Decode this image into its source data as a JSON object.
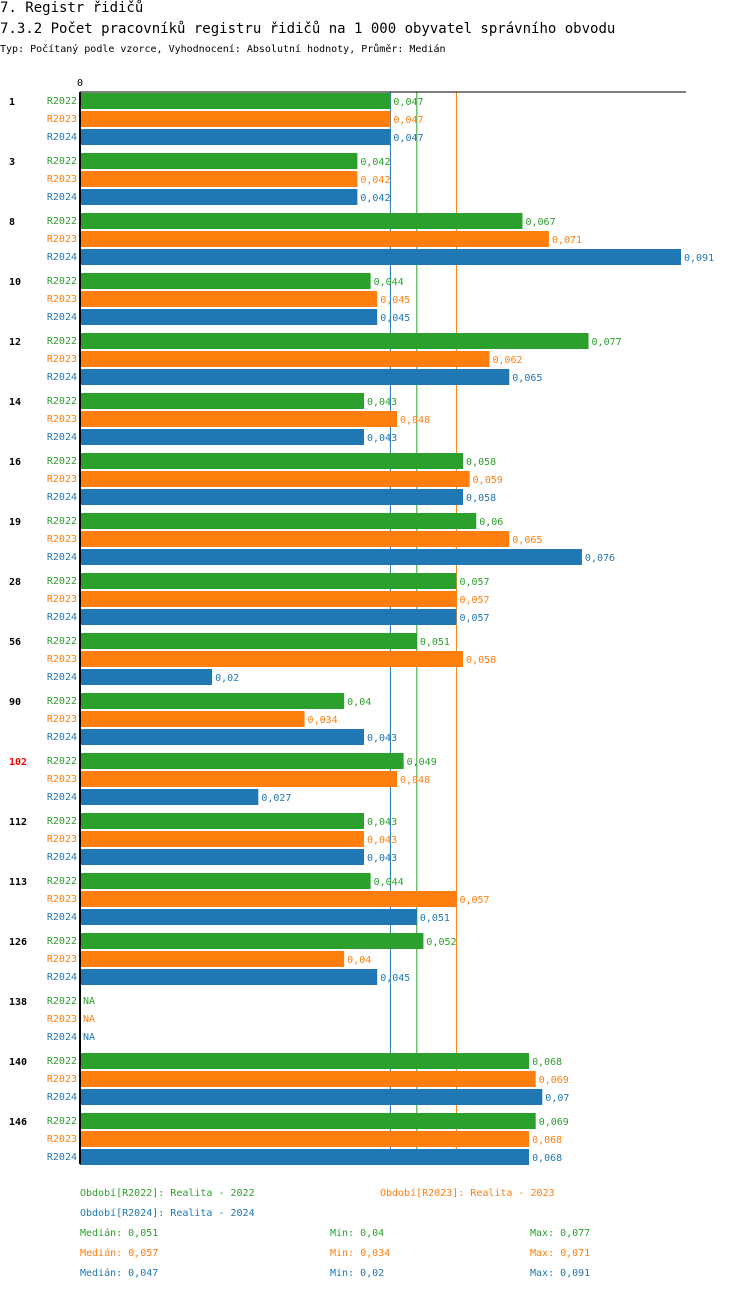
{
  "header": {
    "title": "7. Registr řidičů",
    "subtitle": "7.3.2 Počet pracovníků registru řidičů na 1 000 obyvatel správního obvodu",
    "type_line": "Typ: Počítaný podle vzorce, Vyhodnocení: Absolutní hodnoty, Průměr: Medián"
  },
  "chart_data": {
    "type": "bar",
    "orientation": "horizontal",
    "axis_zero_label": "0",
    "xlim": [
      0,
      0.091
    ],
    "colors": {
      "R2022": "#2ca02c",
      "R2023": "#ff7f0e",
      "R2024": "#1f77b4",
      "highlight": "#ff0000"
    },
    "series_names": [
      "R2022",
      "R2023",
      "R2024"
    ],
    "groups": [
      {
        "label": "1",
        "values": [
          0.047,
          0.047,
          0.047
        ]
      },
      {
        "label": "3",
        "values": [
          0.042,
          0.042,
          0.042
        ]
      },
      {
        "label": "8",
        "values": [
          0.067,
          0.071,
          0.091
        ]
      },
      {
        "label": "10",
        "values": [
          0.044,
          0.045,
          0.045
        ]
      },
      {
        "label": "12",
        "values": [
          0.077,
          0.062,
          0.065
        ]
      },
      {
        "label": "14",
        "values": [
          0.043,
          0.048,
          0.043
        ]
      },
      {
        "label": "16",
        "values": [
          0.058,
          0.059,
          0.058
        ]
      },
      {
        "label": "19",
        "values": [
          0.06,
          0.065,
          0.076
        ]
      },
      {
        "label": "28",
        "values": [
          0.057,
          0.057,
          0.057
        ]
      },
      {
        "label": "56",
        "values": [
          0.051,
          0.058,
          0.02
        ]
      },
      {
        "label": "90",
        "values": [
          0.04,
          0.034,
          0.043
        ]
      },
      {
        "label": "102",
        "highlight": true,
        "values": [
          0.049,
          0.048,
          0.027
        ]
      },
      {
        "label": "112",
        "values": [
          0.043,
          0.043,
          0.043
        ]
      },
      {
        "label": "113",
        "values": [
          0.044,
          0.057,
          0.051
        ]
      },
      {
        "label": "126",
        "values": [
          0.052,
          0.04,
          0.045
        ]
      },
      {
        "label": "138",
        "values": [
          null,
          null,
          null
        ]
      },
      {
        "label": "140",
        "values": [
          0.068,
          0.069,
          0.07
        ]
      },
      {
        "label": "146",
        "values": [
          0.069,
          0.068,
          0.068
        ]
      }
    ],
    "na_label": "NA",
    "medians": {
      "R2022": 0.051,
      "R2023": 0.057,
      "R2024": 0.047
    }
  },
  "legend": {
    "r2022": "Období[R2022]: Realita - 2022",
    "r2023": "Období[R2023]: Realita - 2023",
    "r2024": "Období[R2024]: Realita - 2024",
    "stats": [
      {
        "median": "Medián: 0,051",
        "min": "Min: 0,04",
        "max": "Max: 0,077"
      },
      {
        "median": "Medián: 0,057",
        "min": "Min: 0,034",
        "max": "Max: 0,071"
      },
      {
        "median": "Medián: 0,047",
        "min": "Min: 0,02",
        "max": "Max: 0,091"
      }
    ]
  }
}
